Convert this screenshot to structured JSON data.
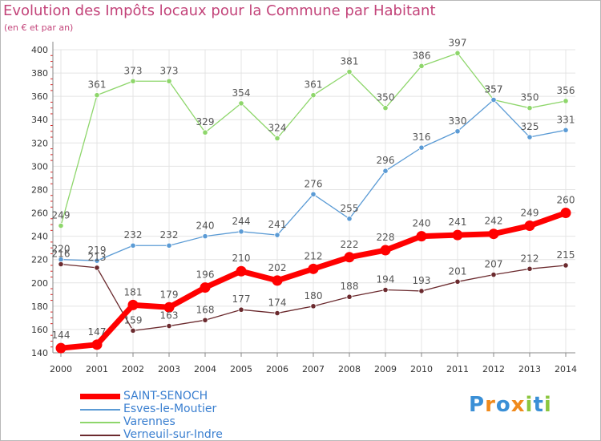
{
  "title": "Evolution des Impôts locaux pour la Commune par Habitant",
  "subtitle": "(en € et par an)",
  "logo": {
    "text": "Proxiti",
    "letters": [
      {
        "ch": "P",
        "color": "#3a8fd6"
      },
      {
        "ch": "r",
        "color": "#f08a1c"
      },
      {
        "ch": "o",
        "color": "#3a8fd6"
      },
      {
        "ch": "x",
        "color": "#f08a1c"
      },
      {
        "ch": "i",
        "color": "#8cc63f"
      },
      {
        "ch": "t",
        "color": "#3a8fd6"
      },
      {
        "ch": "i",
        "color": "#8cc63f"
      }
    ]
  },
  "chart_data": {
    "type": "line",
    "title": "Evolution des Impôts locaux pour la Commune par Habitant",
    "subtitle": "(en € et par an)",
    "xlabel": "",
    "ylabel": "",
    "ylim": [
      140,
      400
    ],
    "yticks": [
      "140",
      "160",
      "180",
      "200",
      "220",
      "240",
      "260",
      "280",
      "300",
      "320",
      "340",
      "360",
      "380",
      "400"
    ],
    "categories": [
      "2000",
      "2001",
      "2002",
      "2003",
      "2004",
      "2005",
      "2006",
      "2007",
      "2008",
      "2009",
      "2010",
      "2011",
      "2012",
      "2013",
      "2014"
    ],
    "grid": true,
    "legend_position": "bottom-left",
    "series": [
      {
        "name": "SAINT-SENOCH",
        "color": "#ff0000",
        "values": [
          144,
          147,
          181,
          179,
          196,
          210,
          202,
          212,
          222,
          228,
          240,
          241,
          242,
          249,
          260
        ],
        "labels": [
          "144",
          "147",
          "181",
          "179",
          "196",
          "210",
          "202",
          "212",
          "222",
          "228",
          "240",
          "241",
          "242",
          "249",
          "260"
        ]
      },
      {
        "name": "Esves-le-Moutier",
        "color": "#5b9bd5",
        "values": [
          220,
          219,
          232,
          232,
          240,
          244,
          241,
          276,
          255,
          296,
          316,
          330,
          357,
          325,
          331
        ],
        "labels": [
          "220",
          "219",
          "232",
          "232",
          "240",
          "244",
          "241",
          "276",
          "255",
          "296",
          "316",
          "330",
          "357",
          "325",
          "331"
        ]
      },
      {
        "name": "Varennes",
        "color": "#8ed66b",
        "values": [
          249,
          361,
          373,
          373,
          329,
          354,
          324,
          361,
          381,
          350,
          386,
          397,
          357,
          350,
          356
        ],
        "labels": [
          "249",
          "361",
          "373",
          "373",
          "329",
          "354",
          "324",
          "361",
          "381",
          "350",
          "386",
          "397",
          "357",
          "350",
          "356"
        ]
      },
      {
        "name": "Verneuil-sur-Indre",
        "color": "#6b2a2e",
        "values": [
          216,
          213,
          159,
          163,
          168,
          177,
          174,
          180,
          188,
          194,
          193,
          201,
          207,
          212,
          215
        ],
        "labels": [
          "216",
          "213",
          "159",
          "163",
          "168",
          "177",
          "174",
          "180",
          "188",
          "194",
          "193",
          "201",
          "207",
          "212",
          "215"
        ]
      }
    ]
  }
}
